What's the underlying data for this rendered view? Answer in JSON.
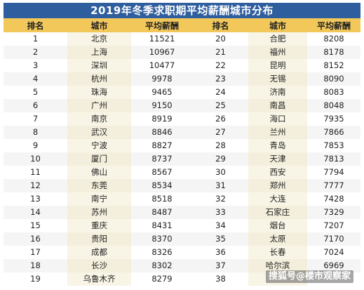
{
  "title": "2019年冬季求职期平均薪酬城市分布",
  "headers": [
    "排名",
    "城市",
    "平均薪酬",
    "排名",
    "城市",
    "平均薪酬"
  ],
  "rows": [
    {
      "rank": "1",
      "city": "北京",
      "salary": "11521",
      "rank2": "20",
      "city2": "合肥",
      "salary2": "8208"
    },
    {
      "rank": "2",
      "city": "上海",
      "salary": "10967",
      "rank2": "21",
      "city2": "福州",
      "salary2": "8178"
    },
    {
      "rank": "3",
      "city": "深圳",
      "salary": "10477",
      "rank2": "22",
      "city2": "昆明",
      "salary2": "8152"
    },
    {
      "rank": "4",
      "city": "杭州",
      "salary": "9978",
      "rank2": "23",
      "city2": "无锡",
      "salary2": "8090"
    },
    {
      "rank": "5",
      "city": "珠海",
      "salary": "9465",
      "rank2": "24",
      "city2": "济南",
      "salary2": "8083"
    },
    {
      "rank": "6",
      "city": "广州",
      "salary": "9150",
      "rank2": "25",
      "city2": "南昌",
      "salary2": "8048"
    },
    {
      "rank": "7",
      "city": "南京",
      "salary": "8919",
      "rank2": "26",
      "city2": "海口",
      "salary2": "7935"
    },
    {
      "rank": "8",
      "city": "武汉",
      "salary": "8846",
      "rank2": "27",
      "city2": "兰州",
      "salary2": "7866"
    },
    {
      "rank": "9",
      "city": "宁波",
      "salary": "8827",
      "rank2": "28",
      "city2": "青岛",
      "salary2": "7853"
    },
    {
      "rank": "10",
      "city": "厦门",
      "salary": "8737",
      "rank2": "29",
      "city2": "天津",
      "salary2": "7813"
    },
    {
      "rank": "11",
      "city": "佛山",
      "salary": "8567",
      "rank2": "30",
      "city2": "西安",
      "salary2": "7794"
    },
    {
      "rank": "12",
      "city": "东莞",
      "salary": "8534",
      "rank2": "31",
      "city2": "郑州",
      "salary2": "7777"
    },
    {
      "rank": "13",
      "city": "南宁",
      "salary": "8518",
      "rank2": "32",
      "city2": "大连",
      "salary2": "7428"
    },
    {
      "rank": "14",
      "city": "苏州",
      "salary": "8487",
      "rank2": "33",
      "city2": "石家庄",
      "salary2": "7329"
    },
    {
      "rank": "15",
      "city": "重庆",
      "salary": "8431",
      "rank2": "34",
      "city2": "烟台",
      "salary2": "7207"
    },
    {
      "rank": "16",
      "city": "贵阳",
      "salary": "8370",
      "rank2": "35",
      "city2": "太原",
      "salary2": "7170"
    },
    {
      "rank": "17",
      "city": "成都",
      "salary": "8326",
      "rank2": "36",
      "city2": "长春",
      "salary2": "7024"
    },
    {
      "rank": "18",
      "city": "长沙",
      "salary": "8302",
      "rank2": "37",
      "city2": "哈尔滨",
      "salary2": "6969"
    },
    {
      "rank": "19",
      "city": "乌鲁木齐",
      "salary": "8279",
      "rank2": "38",
      "city2": "",
      "salary2": ""
    }
  ],
  "watermark": "搜狐号@楼市观察家",
  "colors": {
    "title_bg": "#2f5e9e",
    "header_bg": "#f2c85a"
  }
}
